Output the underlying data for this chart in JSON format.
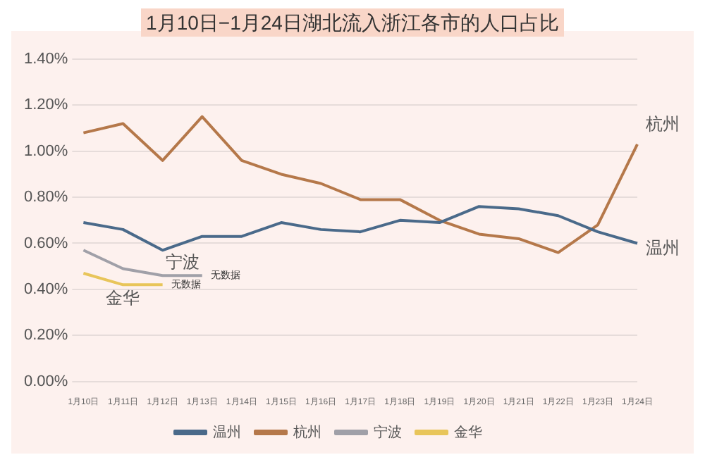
{
  "chart_data": {
    "type": "line",
    "title": "1月10日−1月24日湖北流入浙江各市的人口占比",
    "categories": [
      "1月10日",
      "1月11日",
      "1月12日",
      "1月13日",
      "1月14日",
      "1月15日",
      "1月16日",
      "1月17日",
      "1月18日",
      "1月19日",
      "1月20日",
      "1月21日",
      "1月22日",
      "1月23日",
      "1月24日"
    ],
    "series": [
      {
        "name": "温州",
        "color": "#4a6a8a",
        "values": [
          0.69,
          0.66,
          0.57,
          0.63,
          0.63,
          0.69,
          0.66,
          0.65,
          0.7,
          0.69,
          0.76,
          0.75,
          0.72,
          0.65,
          0.6
        ]
      },
      {
        "name": "杭州",
        "color": "#b5784a",
        "values": [
          1.08,
          1.12,
          0.96,
          1.15,
          0.96,
          0.9,
          0.86,
          0.79,
          0.79,
          0.7,
          0.64,
          0.62,
          0.56,
          0.68,
          1.03
        ]
      },
      {
        "name": "宁波",
        "color": "#a0a0a8",
        "values": [
          0.57,
          0.49,
          0.46,
          0.46,
          null,
          null,
          null,
          null,
          null,
          null,
          null,
          null,
          null,
          null,
          null
        ]
      },
      {
        "name": "金华",
        "color": "#e8c55a",
        "values": [
          0.47,
          0.42,
          0.42,
          null,
          null,
          null,
          null,
          null,
          null,
          null,
          null,
          null,
          null,
          null,
          null
        ]
      }
    ],
    "annotations": [
      {
        "text": "无数据",
        "x": "1月13日",
        "y": 0.46
      },
      {
        "text": "无数据",
        "x": "1月12日",
        "y": 0.42
      }
    ],
    "ylim": [
      0,
      1.4
    ],
    "yticks": [
      {
        "value": 0,
        "label": "0.00%"
      },
      {
        "value": 0.2,
        "label": "0.20%"
      },
      {
        "value": 0.4,
        "label": "0.40%"
      },
      {
        "value": 0.6,
        "label": "0.60%"
      },
      {
        "value": 0.8,
        "label": "0.80%"
      },
      {
        "value": 1.0,
        "label": "1.00%"
      },
      {
        "value": 1.2,
        "label": "1.20%"
      },
      {
        "value": 1.4,
        "label": "1.40%"
      }
    ],
    "grid": "y",
    "legend": "bottom",
    "marker": "none",
    "line_style": "solid"
  }
}
